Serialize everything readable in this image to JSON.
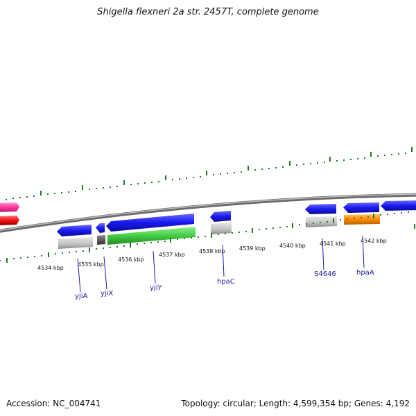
{
  "title": "Shigella flexneri 2a str. 2457T, complete genome",
  "accession": "Accession: NC_004741",
  "summary": "Topology: circular; Length: 4,599,354 bp; Genes: 4,192",
  "scale_labels": [
    "4534 kbp",
    "4535 kbp",
    "4536 kbp",
    "4537 kbp",
    "4538 kbp",
    "4539 kbp",
    "4540 kbp",
    "4541 kbp",
    "4542 kbp"
  ],
  "gene_labels": [
    "yjiA",
    "yjiX",
    "yjiY",
    "hpaC",
    "S4646",
    "hpaA"
  ],
  "colors": {
    "backbone": "#8a8a8a",
    "tick": "#1e7a1e",
    "gene_blue": "#1a1aee",
    "gene_green": "#44cc44",
    "gene_gray": "#bbbbbb",
    "gene_dark": "#555555",
    "gene_orange": "#ff8c00",
    "gene_red": "#ee1111",
    "gene_pink": "#ff3399",
    "label": "#1a1aa6"
  }
}
